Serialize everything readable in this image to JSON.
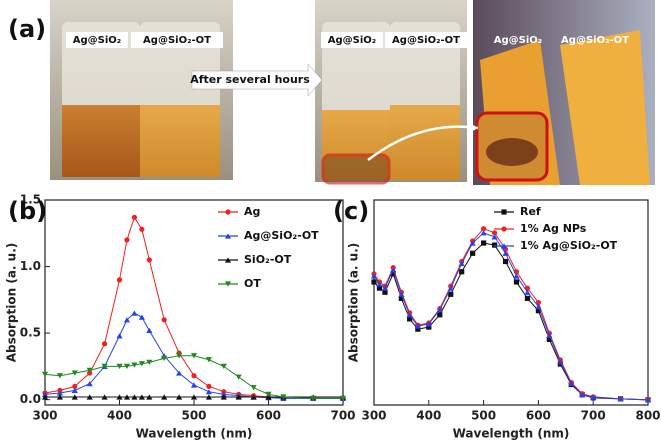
{
  "photos": {
    "panel_label": "(a)",
    "labels": [
      "Ag@SiO₂",
      "Ag@SiO₂-OT",
      "Ag@SiO₂",
      "Ag@SiO₂-OT",
      "Ag@SiO₂",
      "Ag@SiO₂-OT"
    ],
    "arrow_text": "After several hours"
  },
  "chart_data": [
    {
      "type": "line",
      "panel_label": "(b)",
      "x_label": "Wavelength (nm)",
      "y_label": "Absorption (a. u.)",
      "x": [
        300,
        320,
        340,
        360,
        380,
        400,
        410,
        420,
        430,
        440,
        460,
        480,
        500,
        520,
        540,
        560,
        580,
        600,
        620,
        660,
        700
      ],
      "series": [
        {
          "name": "Ag",
          "color": "#ee2222",
          "marker": "circle",
          "values": [
            0.05,
            0.07,
            0.1,
            0.2,
            0.42,
            0.9,
            1.2,
            1.37,
            1.28,
            1.05,
            0.6,
            0.35,
            0.18,
            0.1,
            0.06,
            0.04,
            0.03,
            0.02,
            0.015,
            0.01,
            0.01
          ]
        },
        {
          "name": "Ag@SiO₂-OT",
          "color": "#2244ee",
          "marker": "triangle",
          "values": [
            0.04,
            0.05,
            0.07,
            0.12,
            0.25,
            0.48,
            0.6,
            0.65,
            0.62,
            0.52,
            0.33,
            0.2,
            0.11,
            0.06,
            0.04,
            0.03,
            0.02,
            0.015,
            0.01,
            0.01,
            0.01
          ]
        },
        {
          "name": "SiO₂-OT",
          "color": "#111111",
          "marker": "triangle",
          "values": [
            0.02,
            0.02,
            0.02,
            0.02,
            0.02,
            0.02,
            0.02,
            0.02,
            0.02,
            0.02,
            0.02,
            0.02,
            0.02,
            0.02,
            0.02,
            0.02,
            0.02,
            0.02,
            0.02,
            0.02,
            0.02
          ]
        },
        {
          "name": "OT",
          "color": "#228822",
          "marker": "triangle-down",
          "values": [
            0.19,
            0.18,
            0.2,
            0.22,
            0.25,
            0.25,
            0.25,
            0.26,
            0.27,
            0.28,
            0.31,
            0.33,
            0.33,
            0.3,
            0.25,
            0.17,
            0.09,
            0.04,
            0.02,
            0.01,
            0.01
          ]
        }
      ],
      "xlim": [
        300,
        700
      ],
      "xticks": [
        300,
        400,
        500,
        600,
        700
      ],
      "ylim": [
        -0.04,
        1.5
      ],
      "yticks": [
        {
          "value": 0,
          "label": "0.0"
        },
        {
          "value": 0.5,
          "label": "0.5"
        },
        {
          "value": 1,
          "label": "1.0"
        },
        {
          "value": 1.5,
          "label": "1.5"
        }
      ],
      "legend": "upper right"
    },
    {
      "type": "line",
      "panel_label": "(c)",
      "x_label": "Wavelength (nm)",
      "y_label": "Absorption (a. u.)",
      "x": [
        300,
        310,
        320,
        335,
        350,
        365,
        380,
        400,
        420,
        440,
        460,
        480,
        500,
        520,
        540,
        560,
        580,
        600,
        620,
        640,
        660,
        680,
        700,
        750,
        800
      ],
      "series": [
        {
          "name": "Ref",
          "color": "#111111",
          "marker": "square",
          "values": [
            0.6,
            0.57,
            0.55,
            0.64,
            0.52,
            0.42,
            0.37,
            0.38,
            0.44,
            0.54,
            0.65,
            0.74,
            0.79,
            0.78,
            0.7,
            0.6,
            0.52,
            0.46,
            0.32,
            0.2,
            0.1,
            0.05,
            0.035,
            0.03,
            0.025
          ]
        },
        {
          "name": "1% Ag NPs",
          "color": "#ee2222",
          "marker": "circle",
          "values": [
            0.64,
            0.6,
            0.58,
            0.67,
            0.55,
            0.45,
            0.39,
            0.4,
            0.47,
            0.58,
            0.7,
            0.8,
            0.86,
            0.84,
            0.76,
            0.65,
            0.57,
            0.5,
            0.35,
            0.22,
            0.11,
            0.055,
            0.04,
            0.03,
            0.025
          ]
        },
        {
          "name": "1% Ag@SiO₂-OT",
          "color": "#2244ee",
          "marker": "triangle",
          "values": [
            0.63,
            0.59,
            0.57,
            0.66,
            0.54,
            0.44,
            0.385,
            0.395,
            0.465,
            0.57,
            0.69,
            0.79,
            0.84,
            0.82,
            0.74,
            0.63,
            0.55,
            0.48,
            0.34,
            0.21,
            0.105,
            0.05,
            0.038,
            0.03,
            0.025
          ]
        }
      ],
      "xlim": [
        300,
        800
      ],
      "xticks": [
        300,
        400,
        500,
        600,
        700,
        800
      ],
      "ylim": [
        0,
        1
      ],
      "legend": "upper center"
    }
  ]
}
